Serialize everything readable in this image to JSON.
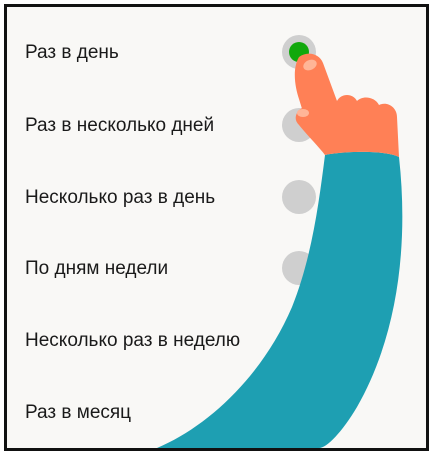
{
  "options": [
    {
      "label": "Раз в день",
      "checked": true
    },
    {
      "label": "Раз в несколько дней",
      "checked": false
    },
    {
      "label": "Несколько раз в день",
      "checked": false
    },
    {
      "label": "По дням недели",
      "checked": false
    },
    {
      "label": "Несколько раз в неделю",
      "checked": false
    },
    {
      "label": "Раз в месяц",
      "checked": false
    }
  ],
  "colors": {
    "radio_selected": "#11a80c",
    "radio_unselected": "#cfcfcf",
    "sleeve": "#1e9fb2",
    "hand": "#ff8056"
  },
  "icons": {
    "pointer": "pointing-hand-icon"
  }
}
